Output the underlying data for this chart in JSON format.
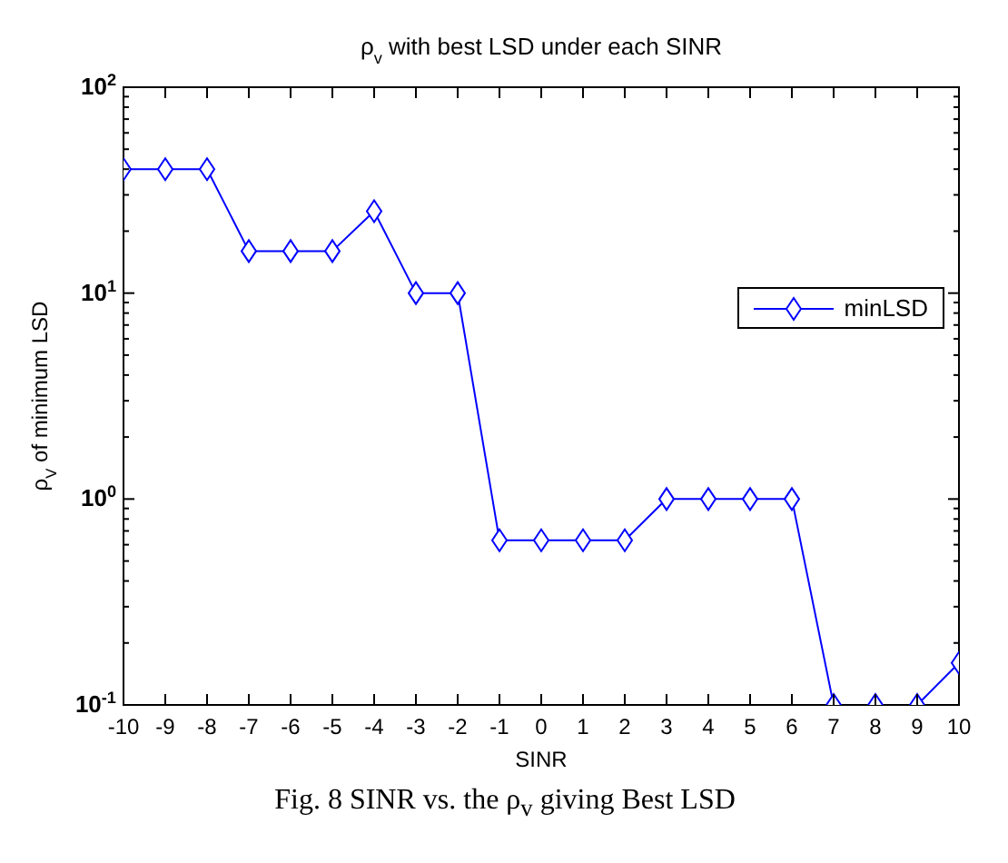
{
  "chart_data": {
    "type": "line",
    "title": "ρ$_{v}$ with best LSD under each SINR",
    "xlabel": "SINR",
    "ylabel": "ρ$_{V}$ of minimum LSD",
    "annotations": [
      "Fig. 8 SINR vs. the ρ$_{v}$ giving Best LSD"
    ],
    "x": [
      -10,
      -9,
      -8,
      -7,
      -6,
      -5,
      -4,
      -3,
      -2,
      -1,
      0,
      1,
      2,
      3,
      4,
      5,
      6,
      7,
      8,
      9,
      10
    ],
    "series": [
      {
        "name": "minLSD",
        "color": "#0000ff",
        "values": [
          40,
          40,
          40,
          16,
          16,
          16,
          25,
          10,
          10,
          0.63,
          0.63,
          0.63,
          0.63,
          1,
          1,
          1,
          1,
          0.1,
          0.1,
          0.1,
          0.16
        ]
      }
    ],
    "xlim": [
      -10,
      10
    ],
    "xticks": [
      -10,
      -9,
      -8,
      -7,
      -6,
      -5,
      -4,
      -3,
      -2,
      -1,
      0,
      1,
      2,
      3,
      4,
      5,
      6,
      7,
      8,
      9,
      10
    ],
    "ylim": [
      0.1,
      100
    ],
    "yticks": [
      {
        "value": 0.1,
        "label": "10$^{-1}$"
      },
      {
        "value": 0.2,
        "label": null
      },
      {
        "value": 0.3,
        "label": null
      },
      {
        "value": 0.4,
        "label": null
      },
      {
        "value": 0.5,
        "label": null
      },
      {
        "value": 0.6,
        "label": null
      },
      {
        "value": 0.7,
        "label": null
      },
      {
        "value": 0.8,
        "label": null
      },
      {
        "value": 0.9,
        "label": null
      },
      {
        "value": 1,
        "label": "10$^{0}$"
      },
      {
        "value": 2,
        "label": null
      },
      {
        "value": 3,
        "label": null
      },
      {
        "value": 4,
        "label": null
      },
      {
        "value": 5,
        "label": null
      },
      {
        "value": 6,
        "label": null
      },
      {
        "value": 7,
        "label": null
      },
      {
        "value": 8,
        "label": null
      },
      {
        "value": 9,
        "label": null
      },
      {
        "value": 10,
        "label": "10$^{1}$"
      },
      {
        "value": 20,
        "label": null
      },
      {
        "value": 30,
        "label": null
      },
      {
        "value": 40,
        "label": null
      },
      {
        "value": 50,
        "label": null
      },
      {
        "value": 60,
        "label": null
      },
      {
        "value": 70,
        "label": null
      },
      {
        "value": 80,
        "label": null
      },
      {
        "value": 90,
        "label": null
      },
      {
        "value": 100,
        "label": "10$^{2}$"
      }
    ],
    "log": "y",
    "grid": false,
    "legend": "right",
    "marker": "diamond",
    "line_style": "solid"
  }
}
